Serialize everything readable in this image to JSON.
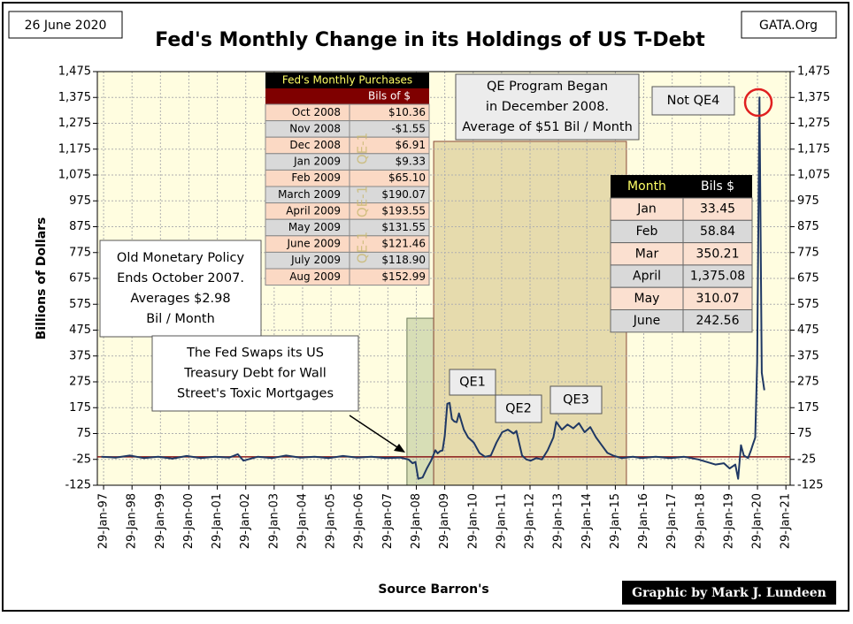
{
  "chart_data": {
    "type": "line",
    "title": "Fed's Monthly Change in its Holdings of US T-Debt",
    "date_label": "26 June 2020",
    "source_label": "GATA.Org",
    "x_label": "Source Barron's",
    "y_label": "Billions  of  Dollars",
    "credit": "Graphic by Mark J. Lundeen",
    "xlim": [
      1996.86,
      2021.23
    ],
    "xticks": [
      {
        "value": 1997.08,
        "label": "29-Jan-97"
      },
      {
        "value": 1998.08,
        "label": "29-Jan-98"
      },
      {
        "value": 1999.08,
        "label": "29-Jan-99"
      },
      {
        "value": 2000.08,
        "label": "29-Jan-00"
      },
      {
        "value": 2001.08,
        "label": "29-Jan-01"
      },
      {
        "value": 2002.08,
        "label": "29-Jan-02"
      },
      {
        "value": 2003.08,
        "label": "29-Jan-03"
      },
      {
        "value": 2004.08,
        "label": "29-Jan-04"
      },
      {
        "value": 2005.08,
        "label": "29-Jan-05"
      },
      {
        "value": 2006.08,
        "label": "29-Jan-06"
      },
      {
        "value": 2007.08,
        "label": "29-Jan-07"
      },
      {
        "value": 2008.08,
        "label": "29-Jan-08"
      },
      {
        "value": 2009.08,
        "label": "29-Jan-09"
      },
      {
        "value": 2010.08,
        "label": "29-Jan-10"
      },
      {
        "value": 2011.08,
        "label": "29-Jan-11"
      },
      {
        "value": 2012.08,
        "label": "29-Jan-12"
      },
      {
        "value": 2013.08,
        "label": "29-Jan-13"
      },
      {
        "value": 2014.08,
        "label": "29-Jan-14"
      },
      {
        "value": 2015.08,
        "label": "29-Jan-15"
      },
      {
        "value": 2016.08,
        "label": "29-Jan-16"
      },
      {
        "value": 2017.08,
        "label": "29-Jan-17"
      },
      {
        "value": 2018.08,
        "label": "29-Jan-18"
      },
      {
        "value": 2019.08,
        "label": "29-Jan-19"
      },
      {
        "value": 2020.08,
        "label": "29-Jan-20"
      },
      {
        "value": 2021.08,
        "label": "29-Jan-21"
      }
    ],
    "ylim": [
      -125,
      1475
    ],
    "yticks": [
      -125,
      -25,
      75,
      175,
      275,
      375,
      475,
      575,
      675,
      775,
      875,
      975,
      {
        "value": 1075,
        "label": "1,075"
      },
      {
        "value": 1175,
        "label": "1,175"
      },
      {
        "value": 1275,
        "label": "1,275"
      },
      {
        "value": 1375,
        "label": "1,375"
      },
      {
        "value": 1475,
        "label": "1,475"
      }
    ],
    "y2lim": [
      -125,
      1475
    ],
    "y2ticks": [
      -125,
      -25,
      75,
      175,
      275,
      375,
      475,
      575,
      675,
      775,
      875,
      975,
      {
        "value": 1075,
        "label": "1,075"
      },
      {
        "value": 1175,
        "label": "1,175"
      },
      {
        "value": 1275,
        "label": "1,275"
      },
      {
        "value": 1375,
        "label": "1,375"
      },
      {
        "value": 1475,
        "label": "1,475"
      }
    ],
    "grid": true,
    "hline": -15,
    "hline_color": "#8b1a1a",
    "shaded_regions": [
      {
        "x": [
          2007.75,
          2008.69
        ],
        "y": [
          -125,
          521
        ],
        "color": "#c9d3a8"
      },
      {
        "x": [
          2008.69,
          2015.47
        ],
        "y": [
          -125,
          1205
        ],
        "color": "#ddcf9c"
      }
    ],
    "series": [
      {
        "color": "#1f3864",
        "x": [
          1997.0,
          1997.5,
          1998.0,
          1998.5,
          1999.0,
          1999.5,
          2000.0,
          2000.5,
          2001.0,
          2001.5,
          2001.8,
          2002.0,
          2002.5,
          2003.0,
          2003.5,
          2004.0,
          2004.5,
          2005.0,
          2005.5,
          2006.0,
          2006.5,
          2007.0,
          2007.5,
          2007.8,
          2007.95,
          2008.05,
          2008.15,
          2008.3,
          2008.45,
          2008.6,
          2008.75,
          2008.83,
          2008.92,
          2009.0,
          2009.08,
          2009.17,
          2009.25,
          2009.33,
          2009.42,
          2009.5,
          2009.58,
          2009.75,
          2009.9,
          2010.1,
          2010.3,
          2010.5,
          2010.7,
          2010.9,
          2011.1,
          2011.3,
          2011.5,
          2011.6,
          2011.8,
          2011.95,
          2012.1,
          2012.3,
          2012.5,
          2012.7,
          2012.9,
          2013.0,
          2013.2,
          2013.4,
          2013.6,
          2013.8,
          2014.0,
          2014.2,
          2014.4,
          2014.6,
          2014.8,
          2015.0,
          2015.3,
          2015.7,
          2016.0,
          2016.5,
          2017.0,
          2017.5,
          2018.0,
          2018.3,
          2018.6,
          2018.9,
          2019.1,
          2019.3,
          2019.4,
          2019.5,
          2019.6,
          2019.75,
          2019.85,
          2019.92,
          2020.0,
          2020.07,
          2020.15,
          2020.23,
          2020.32
        ],
        "values": [
          -15,
          -18,
          -10,
          -20,
          -15,
          -22,
          -12,
          -20,
          -15,
          -18,
          -5,
          -30,
          -15,
          -20,
          -10,
          -18,
          -15,
          -20,
          -12,
          -18,
          -15,
          -20,
          -18,
          -25,
          -40,
          -35,
          -100,
          -95,
          -60,
          -30,
          10.36,
          -1.55,
          6.91,
          9.33,
          65.1,
          190.07,
          193.55,
          131.55,
          121.46,
          118.9,
          152.99,
          90,
          60,
          40,
          0,
          -15,
          -10,
          40,
          80,
          90,
          75,
          85,
          -10,
          -25,
          -30,
          -20,
          -25,
          10,
          60,
          120,
          90,
          110,
          95,
          115,
          80,
          100,
          60,
          30,
          0,
          -10,
          -20,
          -15,
          -20,
          -15,
          -20,
          -15,
          -25,
          -35,
          -45,
          -40,
          -60,
          -45,
          -100,
          30,
          -10,
          -20,
          10,
          33.45,
          58.84,
          350.21,
          1375.08,
          310.07,
          242.56
        ]
      }
    ],
    "annotations": [
      {
        "lines": [
          "QE Program Began",
          "in December 2008.",
          "Average of $51 Bil / Month"
        ]
      },
      {
        "lines": [
          "Not QE4"
        ]
      },
      {
        "lines": [
          "Old Monetary Policy",
          "Ends October 2007.",
          "Averages $2.98",
          "Bil / Month"
        ]
      },
      {
        "lines": [
          "The Fed Swaps its US",
          "Treasury Debt for Wall",
          "Street's Toxic Mortgages"
        ]
      },
      {
        "lines": [
          "QE1"
        ]
      },
      {
        "lines": [
          "QE2"
        ]
      },
      {
        "lines": [
          "QE3"
        ]
      }
    ],
    "table_marks": [
      "QE-1",
      "QE-1",
      "QE-1"
    ],
    "purchases_table": {
      "title": "Fed's Monthly Purchases",
      "header": [
        "Bils of $"
      ],
      "rows": [
        [
          "Oct 2008",
          "$10.36"
        ],
        [
          "Nov 2008",
          "-$1.55"
        ],
        [
          "Dec 2008",
          "$6.91"
        ],
        [
          "Jan 2009",
          "$9.33"
        ],
        [
          "Feb 2009",
          "$65.10"
        ],
        [
          "March 2009",
          "$190.07"
        ],
        [
          "April 2009",
          "$193.55"
        ],
        [
          "May 2009",
          "$131.55"
        ],
        [
          "June 2009",
          "$121.46"
        ],
        [
          "July 2009",
          "$118.90"
        ],
        [
          "Aug 2009",
          "$152.99"
        ]
      ]
    },
    "month_table": {
      "header": [
        "Month",
        "Bils $"
      ],
      "rows": [
        [
          "Jan",
          "33.45"
        ],
        [
          "Feb",
          "58.84"
        ],
        [
          "Mar",
          "350.21"
        ],
        [
          "April",
          "1,375.08"
        ],
        [
          "May",
          "310.07"
        ],
        [
          "June",
          "242.56"
        ]
      ]
    }
  }
}
